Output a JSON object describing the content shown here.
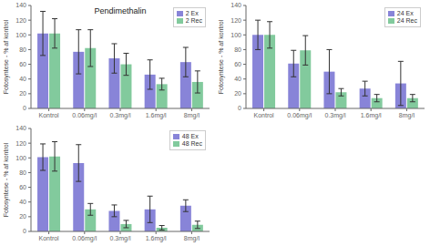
{
  "chart_data": [
    {
      "type": "bar",
      "title": "Pendimethalin",
      "ylabel": "Fotosyntese - % af kontrol",
      "categories": [
        "Kontrol",
        "0.06mg/l",
        "0.3mg/l",
        "1.6mg/l",
        "8mg/l"
      ],
      "series": [
        {
          "name": "2 Ex",
          "color": "#8884d8",
          "values": [
            102,
            77,
            68,
            46,
            63
          ],
          "errors": [
            30,
            30,
            20,
            20,
            20
          ]
        },
        {
          "name": "2 Rec",
          "color": "#82ca9d",
          "values": [
            102,
            82,
            60,
            33,
            36
          ],
          "errors": [
            20,
            25,
            15,
            8,
            15
          ]
        }
      ],
      "ylim": [
        0,
        140
      ],
      "yticks": [
        0,
        20,
        40,
        60,
        80,
        100,
        120,
        140
      ],
      "grid": false,
      "legend": "upper right"
    },
    {
      "type": "bar",
      "ylabel": "Fotosyntese - % af kontrol",
      "categories": [
        "Kontrol",
        "0.06mg/l",
        "0.3mg/l",
        "1.6mg/l",
        "8mg/l"
      ],
      "series": [
        {
          "name": "24 Ex",
          "color": "#8884d8",
          "values": [
            100,
            61,
            50,
            27,
            34
          ],
          "errors": [
            20,
            18,
            30,
            10,
            30
          ]
        },
        {
          "name": "24 Rec",
          "color": "#82ca9d",
          "values": [
            100,
            79,
            22,
            14,
            14
          ],
          "errors": [
            18,
            20,
            5,
            5,
            5
          ]
        }
      ],
      "ylim": [
        0,
        140
      ],
      "yticks": [
        0,
        20,
        40,
        60,
        80,
        100,
        120,
        140
      ],
      "grid": false,
      "legend": "upper right"
    },
    {
      "type": "bar",
      "ylabel": "Fotosyntese - % af kontrol",
      "categories": [
        "Kontrol",
        "0.06mg/l",
        "0.3mg/l",
        "1.6mg/l",
        "8mg/l"
      ],
      "series": [
        {
          "name": "48 Ex",
          "color": "#8884d8",
          "values": [
            101,
            93,
            28,
            30,
            35
          ],
          "errors": [
            18,
            25,
            8,
            18,
            8
          ]
        },
        {
          "name": "48 Rec",
          "color": "#82ca9d",
          "values": [
            102,
            30,
            10,
            5,
            9
          ],
          "errors": [
            20,
            8,
            5,
            3,
            5
          ]
        }
      ],
      "ylim": [
        0,
        140
      ],
      "yticks": [
        0,
        20,
        40,
        60,
        80,
        100,
        120,
        140
      ],
      "grid": false,
      "legend": "upper right"
    }
  ]
}
